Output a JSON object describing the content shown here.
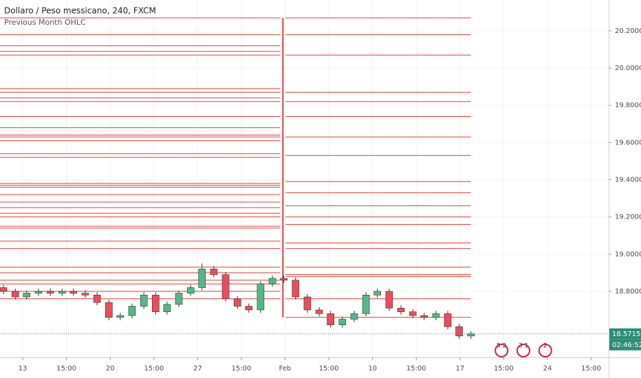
{
  "chart_data": {
    "type": "candlestick",
    "title": "Dollaro / Peso messicano, 240, FXCM",
    "subtitle": "Previous Month OHLC",
    "xlim": [
      -0.52,
      13.4
    ],
    "xticks": [
      {
        "value": 0,
        "label": "13"
      },
      {
        "value": 1,
        "label": "15:00"
      },
      {
        "value": 2,
        "label": "20"
      },
      {
        "value": 3,
        "label": "15:00"
      },
      {
        "value": 4,
        "label": "27"
      },
      {
        "value": 5,
        "label": "15:00"
      },
      {
        "value": 6,
        "label": "Feb"
      },
      {
        "value": 7,
        "label": "15:00"
      },
      {
        "value": 8,
        "label": "10"
      },
      {
        "value": 9,
        "label": "15:00"
      },
      {
        "value": 10,
        "label": "17"
      },
      {
        "value": 11,
        "label": "15:00"
      },
      {
        "value": 12,
        "label": "24"
      },
      {
        "value": 13,
        "label": "15:00"
      }
    ],
    "ylim": [
      18.445,
      20.366
    ],
    "yticks": [
      {
        "value": 18.8,
        "label": "18.80000"
      },
      {
        "value": 19.0,
        "label": "19.00000"
      },
      {
        "value": 19.2,
        "label": "19.20000"
      },
      {
        "value": 19.4,
        "label": "19.40000"
      },
      {
        "value": 19.6,
        "label": "19.60000"
      },
      {
        "value": 19.8,
        "label": "19.80000"
      },
      {
        "value": 20.0,
        "label": "20.00000"
      },
      {
        "value": 20.2,
        "label": "20.20000"
      }
    ],
    "grid": true,
    "up_color": "#53b987",
    "down_color": "#eb4d5c",
    "candles": {
      "x": [
        -0.44,
        -0.17,
        0.09,
        0.36,
        0.63,
        0.9,
        1.16,
        1.43,
        1.7,
        1.97,
        2.23,
        2.5,
        2.77,
        3.04,
        3.3,
        3.57,
        3.84,
        4.1,
        4.37,
        4.64,
        4.91,
        5.17,
        5.44,
        5.71,
        5.97,
        6.24,
        6.51,
        6.78,
        7.04,
        7.31,
        7.58,
        7.85,
        8.11,
        8.38,
        8.65,
        8.92,
        9.18,
        9.45,
        9.72,
        9.98,
        10.25
      ],
      "open": [
        18.82,
        18.8,
        18.77,
        18.79,
        18.8,
        18.79,
        18.8,
        18.79,
        18.78,
        18.74,
        18.66,
        18.67,
        18.72,
        18.78,
        18.69,
        18.73,
        18.79,
        18.82,
        18.92,
        18.89,
        18.76,
        18.72,
        18.7,
        18.84,
        18.87,
        18.86,
        18.77,
        18.7,
        18.68,
        18.62,
        18.65,
        18.68,
        18.78,
        18.8,
        18.71,
        18.69,
        18.67,
        18.66,
        18.68,
        18.61,
        18.56
      ],
      "high": [
        18.835,
        18.815,
        18.805,
        18.815,
        18.815,
        18.815,
        18.815,
        18.805,
        18.795,
        18.755,
        18.685,
        18.735,
        18.795,
        18.795,
        18.745,
        18.805,
        18.835,
        18.95,
        18.935,
        18.905,
        18.775,
        18.735,
        18.855,
        18.885,
        18.885,
        18.875,
        18.785,
        18.715,
        18.695,
        18.665,
        18.695,
        18.795,
        18.815,
        18.815,
        18.725,
        18.705,
        18.685,
        18.695,
        18.695,
        18.625,
        18.585
      ],
      "low": [
        18.785,
        18.755,
        18.755,
        18.775,
        18.775,
        18.775,
        18.775,
        18.765,
        18.725,
        18.645,
        18.645,
        18.655,
        18.705,
        18.675,
        18.675,
        18.715,
        18.775,
        18.805,
        18.875,
        18.745,
        18.705,
        18.685,
        18.685,
        18.825,
        18.845,
        18.755,
        18.685,
        18.665,
        18.605,
        18.605,
        18.635,
        18.665,
        18.765,
        18.695,
        18.675,
        18.655,
        18.645,
        18.645,
        18.595,
        18.545,
        18.545
      ],
      "close": [
        18.8,
        18.77,
        18.79,
        18.8,
        18.79,
        18.8,
        18.79,
        18.78,
        18.74,
        18.66,
        18.67,
        18.72,
        18.78,
        18.69,
        18.73,
        18.79,
        18.82,
        18.92,
        18.89,
        18.76,
        18.72,
        18.7,
        18.84,
        18.87,
        18.86,
        18.77,
        18.7,
        18.68,
        18.62,
        18.65,
        18.68,
        18.78,
        18.8,
        18.71,
        18.69,
        18.67,
        18.66,
        18.68,
        18.61,
        18.56,
        18.5715
      ]
    },
    "level_color": "#e53935",
    "levels_prev": [
      20.27,
      20.18,
      20.12,
      20.09,
      20.07,
      19.89,
      19.87,
      19.84,
      19.82,
      19.74,
      19.68,
      19.64,
      19.63,
      19.61,
      19.54,
      19.52,
      19.38,
      19.37,
      19.36,
      19.32,
      19.28,
      19.25,
      19.22,
      19.2,
      19.15,
      19.14,
      19.07,
      19.03,
      18.93,
      18.9,
      18.86,
      18.84,
      18.8,
      18.76
    ],
    "levels_curr": [
      20.27,
      20.18,
      20.07,
      19.87,
      19.82,
      19.74,
      19.63,
      19.53,
      19.39,
      19.33,
      19.26,
      19.2,
      19.16,
      19.06,
      19.03,
      18.93,
      18.89,
      18.88,
      18.76,
      18.66
    ],
    "split_x": 5.95,
    "last_price": {
      "value": 18.5715,
      "label": "18.57150"
    },
    "countdown": "02:46:52",
    "price_color": "#2a8e75",
    "events": [
      {
        "x": 10.95,
        "label": "5 2"
      },
      {
        "x": 11.45,
        "label": "3 1"
      },
      {
        "x": 11.95,
        "label": "2"
      }
    ]
  }
}
